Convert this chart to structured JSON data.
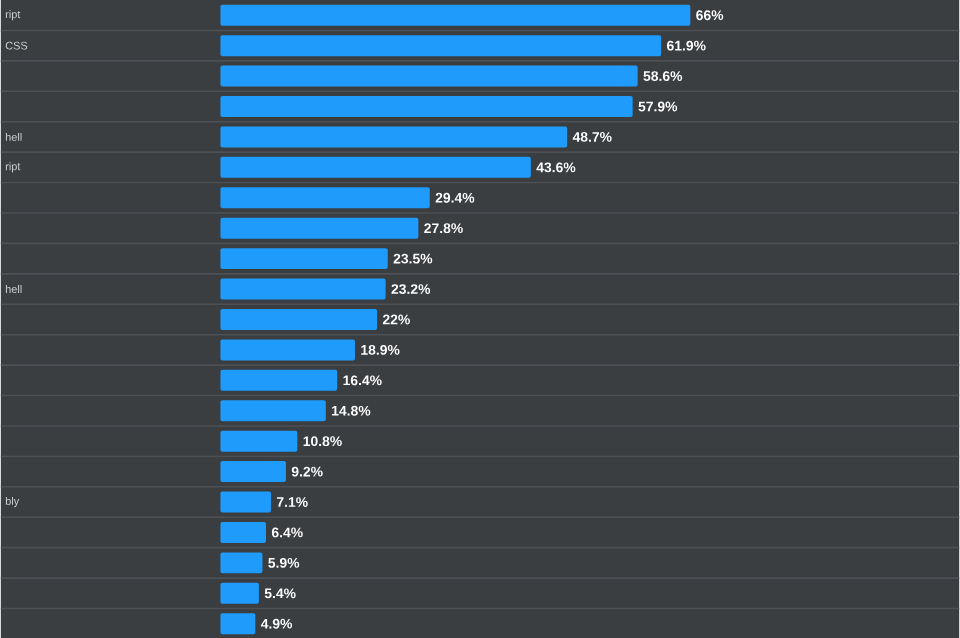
{
  "chart_data": {
    "type": "bar",
    "orientation": "horizontal",
    "categories": [
      "ript",
      "CSS",
      null,
      null,
      "hell",
      "ript",
      null,
      null,
      null,
      "hell",
      null,
      null,
      null,
      null,
      null,
      null,
      "bly",
      null,
      null,
      null,
      null
    ],
    "values": [
      66,
      61.9,
      58.6,
      57.9,
      48.7,
      43.6,
      29.4,
      27.8,
      23.5,
      23.2,
      22,
      18.9,
      16.4,
      14.8,
      10.8,
      9.2,
      7.1,
      6.4,
      5.9,
      5.4,
      4.9
    ],
    "value_labels": [
      "66%",
      "61.9%",
      "58.6%",
      "57.9%",
      "48.7%",
      "43.6%",
      "29.4%",
      "27.8%",
      "23.5%",
      "23.2%",
      "22%",
      "18.9%",
      "16.4%",
      "14.8%",
      "10.8%",
      "9.2%",
      "7.1%",
      "6.4%",
      "5.9%",
      "5.4%",
      "4.9%"
    ],
    "color": "#1e9bfb"
  }
}
